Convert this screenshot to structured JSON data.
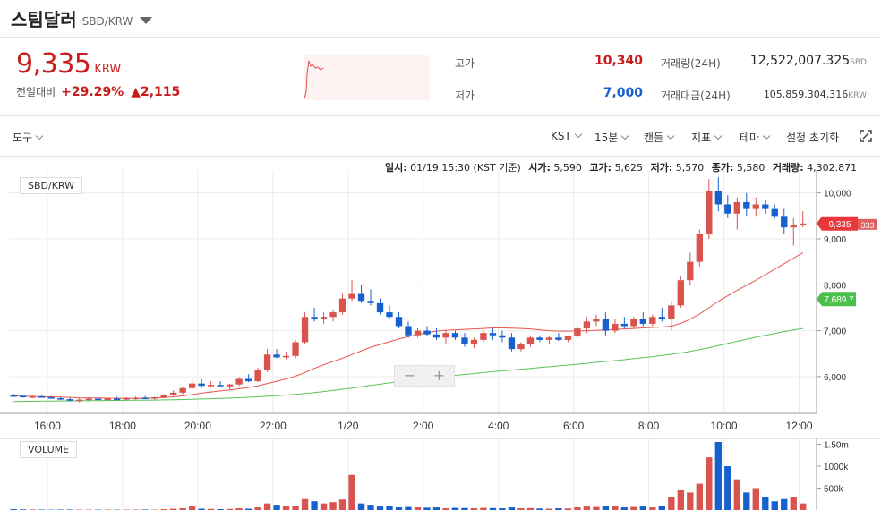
{
  "header": {
    "coin_name": "스팀달러",
    "pair": "SBD/KRW"
  },
  "price": {
    "current": "9,335",
    "unit": "KRW",
    "change_label": "전일대비",
    "change_rate": "+29.29%",
    "change_amount": "▲2,115"
  },
  "stats": {
    "high_label": "고가",
    "high_value": "10,340",
    "low_label": "저가",
    "low_value": "7,000",
    "volume_label": "거래량(24H)",
    "volume_value": "12,522,007.325",
    "volume_unit": "SBD",
    "amount_label": "거래대금(24H)",
    "amount_value": "105,859,304,316",
    "amount_unit": "KRW"
  },
  "toolbar": {
    "tools": "도구",
    "timezone": "KST",
    "interval": "15분",
    "chart_type": "캔들",
    "indicator": "지표",
    "theme": "테마",
    "reset": "설정 초기화"
  },
  "ohlc": {
    "time_label": "일시:",
    "time_value": "01/19 15:30 (KST 기준)",
    "open_label": "시가:",
    "open_value": "5,590",
    "high_label": "고가:",
    "high_value": "5,625",
    "low_label": "저가:",
    "low_value": "5,570",
    "close_label": "종가:",
    "close_value": "5,580",
    "vol_label": "거래량:",
    "vol_value": "4,302.871"
  },
  "chart_legend": "SBD/KRW",
  "volume_legend": "VOLUME",
  "zoom": {
    "minus": "−",
    "plus": "+"
  },
  "colors": {
    "up": "#d9534f",
    "down": "#1761ce",
    "ma_short": "#e8554e",
    "ma_long": "#59c259",
    "price_tag": "#e8383a",
    "ma_tag": "#4cc04c"
  },
  "chart_data": {
    "type": "candlestick",
    "x_ticks": [
      "16:00",
      "18:00",
      "20:00",
      "22:00",
      "1/20",
      "2:00",
      "4:00",
      "6:00",
      "8:00",
      "10:00",
      "12:00"
    ],
    "y_ticks": [
      "6,000",
      "7,000",
      "8,000",
      "9,000",
      "10,000"
    ],
    "ylim": [
      5200,
      10500
    ],
    "vol_ticks": [
      "500k",
      "1000k",
      "1.50m"
    ],
    "vol_ylim": [
      0,
      1550000
    ],
    "last_price_tag": "9,335",
    "last_price_sub": "333",
    "ma_tag": "7,689.7",
    "candles": [
      [
        5590,
        5625,
        5570,
        5580
      ],
      [
        5580,
        5600,
        5540,
        5560
      ],
      [
        5560,
        5590,
        5530,
        5570
      ],
      [
        5570,
        5600,
        5540,
        5550
      ],
      [
        5550,
        5580,
        5520,
        5530
      ],
      [
        5530,
        5560,
        5490,
        5510
      ],
      [
        5510,
        5540,
        5460,
        5480
      ],
      [
        5480,
        5530,
        5440,
        5500
      ],
      [
        5500,
        5550,
        5470,
        5520
      ],
      [
        5520,
        5560,
        5490,
        5500
      ],
      [
        5500,
        5540,
        5480,
        5520
      ],
      [
        5520,
        5560,
        5500,
        5510
      ],
      [
        5510,
        5550,
        5490,
        5530
      ],
      [
        5530,
        5570,
        5500,
        5540
      ],
      [
        5540,
        5580,
        5510,
        5520
      ],
      [
        5520,
        5560,
        5500,
        5550
      ],
      [
        5550,
        5620,
        5530,
        5600
      ],
      [
        5600,
        5700,
        5580,
        5650
      ],
      [
        5650,
        5780,
        5620,
        5750
      ],
      [
        5750,
        5980,
        5700,
        5850
      ],
      [
        5850,
        5950,
        5750,
        5800
      ],
      [
        5800,
        5900,
        5760,
        5820
      ],
      [
        5820,
        5900,
        5780,
        5790
      ],
      [
        5790,
        5850,
        5720,
        5830
      ],
      [
        5830,
        5990,
        5800,
        5950
      ],
      [
        5950,
        6050,
        5880,
        5900
      ],
      [
        5900,
        6200,
        5880,
        6150
      ],
      [
        6150,
        6600,
        6100,
        6480
      ],
      [
        6480,
        6600,
        6400,
        6420
      ],
      [
        6420,
        6550,
        6380,
        6450
      ],
      [
        6450,
        6800,
        6400,
        6750
      ],
      [
        6750,
        7400,
        6700,
        7300
      ],
      [
        7300,
        7500,
        7200,
        7250
      ],
      [
        7250,
        7400,
        7150,
        7300
      ],
      [
        7300,
        7450,
        7200,
        7400
      ],
      [
        7400,
        7800,
        7350,
        7700
      ],
      [
        7700,
        8100,
        7650,
        7800
      ],
      [
        7800,
        8000,
        7600,
        7650
      ],
      [
        7650,
        7900,
        7550,
        7600
      ],
      [
        7600,
        7700,
        7350,
        7400
      ],
      [
        7400,
        7550,
        7250,
        7300
      ],
      [
        7300,
        7400,
        7050,
        7100
      ],
      [
        7100,
        7200,
        6850,
        6900
      ],
      [
        6900,
        7050,
        6850,
        7000
      ],
      [
        7000,
        7100,
        6880,
        6920
      ],
      [
        6920,
        7050,
        6800,
        6850
      ],
      [
        6850,
        7000,
        6700,
        6950
      ],
      [
        6950,
        7000,
        6800,
        6850
      ],
      [
        6850,
        6950,
        6650,
        6700
      ],
      [
        6700,
        6850,
        6620,
        6800
      ],
      [
        6800,
        7000,
        6750,
        6950
      ],
      [
        6950,
        7050,
        6800,
        6900
      ],
      [
        6900,
        7000,
        6750,
        6850
      ],
      [
        6850,
        6950,
        6550,
        6600
      ],
      [
        6600,
        6750,
        6550,
        6700
      ],
      [
        6700,
        6900,
        6650,
        6850
      ],
      [
        6850,
        6900,
        6750,
        6800
      ],
      [
        6800,
        6900,
        6720,
        6850
      ],
      [
        6850,
        6950,
        6780,
        6800
      ],
      [
        6800,
        6900,
        6750,
        6880
      ],
      [
        6880,
        7100,
        6850,
        7050
      ],
      [
        7050,
        7300,
        6950,
        7200
      ],
      [
        7200,
        7350,
        7100,
        7250
      ],
      [
        7250,
        7400,
        6900,
        7000
      ],
      [
        7000,
        7250,
        6950,
        7150
      ],
      [
        7150,
        7300,
        7050,
        7100
      ],
      [
        7100,
        7300,
        7050,
        7250
      ],
      [
        7250,
        7400,
        7100,
        7150
      ],
      [
        7150,
        7350,
        7100,
        7300
      ],
      [
        7300,
        7500,
        7200,
        7250
      ],
      [
        7250,
        7650,
        7000,
        7550
      ],
      [
        7550,
        8200,
        7500,
        8100
      ],
      [
        8100,
        8700,
        8000,
        8500
      ],
      [
        8500,
        9200,
        8400,
        9100
      ],
      [
        9100,
        10300,
        9000,
        10050
      ],
      [
        10050,
        10340,
        9600,
        9750
      ],
      [
        9750,
        9950,
        9450,
        9550
      ],
      [
        9550,
        9900,
        9200,
        9800
      ],
      [
        9800,
        10000,
        9500,
        9650
      ],
      [
        9650,
        9900,
        9500,
        9750
      ],
      [
        9750,
        9850,
        9550,
        9650
      ],
      [
        9650,
        9750,
        9450,
        9500
      ],
      [
        9500,
        9650,
        9100,
        9250
      ],
      [
        9250,
        9450,
        8850,
        9300
      ],
      [
        9300,
        9600,
        9250,
        9335
      ]
    ],
    "ma_short": [
      5580,
      5575,
      5570,
      5565,
      5560,
      5555,
      5548,
      5540,
      5538,
      5535,
      5532,
      5530,
      5530,
      5532,
      5534,
      5536,
      5545,
      5560,
      5580,
      5610,
      5640,
      5665,
      5690,
      5710,
      5735,
      5765,
      5800,
      5850,
      5900,
      5950,
      6010,
      6090,
      6180,
      6260,
      6330,
      6400,
      6480,
      6560,
      6640,
      6700,
      6760,
      6820,
      6870,
      6920,
      6960,
      6990,
      7010,
      7020,
      7030,
      7040,
      7050,
      7060,
      7060,
      7055,
      7050,
      7040,
      7020,
      7000,
      6990,
      6990,
      6995,
      7000,
      7010,
      7020,
      7030,
      7040,
      7050,
      7060,
      7070,
      7080,
      7100,
      7160,
      7250,
      7360,
      7500,
      7640,
      7760,
      7880,
      7990,
      8100,
      8220,
      8340,
      8460,
      8580,
      8700
    ],
    "ma_long": [
      5460,
      5462,
      5464,
      5466,
      5468,
      5470,
      5472,
      5474,
      5476,
      5478,
      5480,
      5482,
      5484,
      5486,
      5488,
      5491,
      5494,
      5498,
      5502,
      5508,
      5514,
      5520,
      5527,
      5534,
      5541,
      5550,
      5560,
      5572,
      5585,
      5600,
      5616,
      5634,
      5654,
      5676,
      5700,
      5726,
      5752,
      5780,
      5808,
      5836,
      5864,
      5890,
      5916,
      5940,
      5964,
      5986,
      6008,
      6028,
      6048,
      6068,
      6088,
      6108,
      6126,
      6144,
      6162,
      6180,
      6198,
      6216,
      6234,
      6252,
      6270,
      6290,
      6310,
      6330,
      6350,
      6370,
      6392,
      6414,
      6436,
      6460,
      6486,
      6516,
      6550,
      6588,
      6630,
      6676,
      6722,
      6768,
      6814,
      6858,
      6900,
      6940,
      6980,
      7018,
      7050
    ],
    "volumes": [
      20000,
      15000,
      12000,
      10000,
      8000,
      10000,
      12000,
      9000,
      8000,
      9000,
      10000,
      8000,
      9000,
      10000,
      12000,
      8000,
      20000,
      30000,
      40000,
      80000,
      30000,
      25000,
      20000,
      25000,
      40000,
      30000,
      60000,
      150000,
      120000,
      80000,
      100000,
      250000,
      200000,
      150000,
      180000,
      240000,
      800000,
      150000,
      120000,
      80000,
      90000,
      60000,
      70000,
      60000,
      55000,
      60000,
      40000,
      50000,
      45000,
      40000,
      50000,
      45000,
      40000,
      60000,
      40000,
      45000,
      35000,
      30000,
      40000,
      35000,
      60000,
      80000,
      70000,
      90000,
      80000,
      60000,
      70000,
      80000,
      60000,
      90000,
      300000,
      450000,
      400000,
      600000,
      1200000,
      1550000,
      1000000,
      700000,
      400000,
      500000,
      300000,
      200000,
      250000,
      300000,
      150000
    ]
  }
}
